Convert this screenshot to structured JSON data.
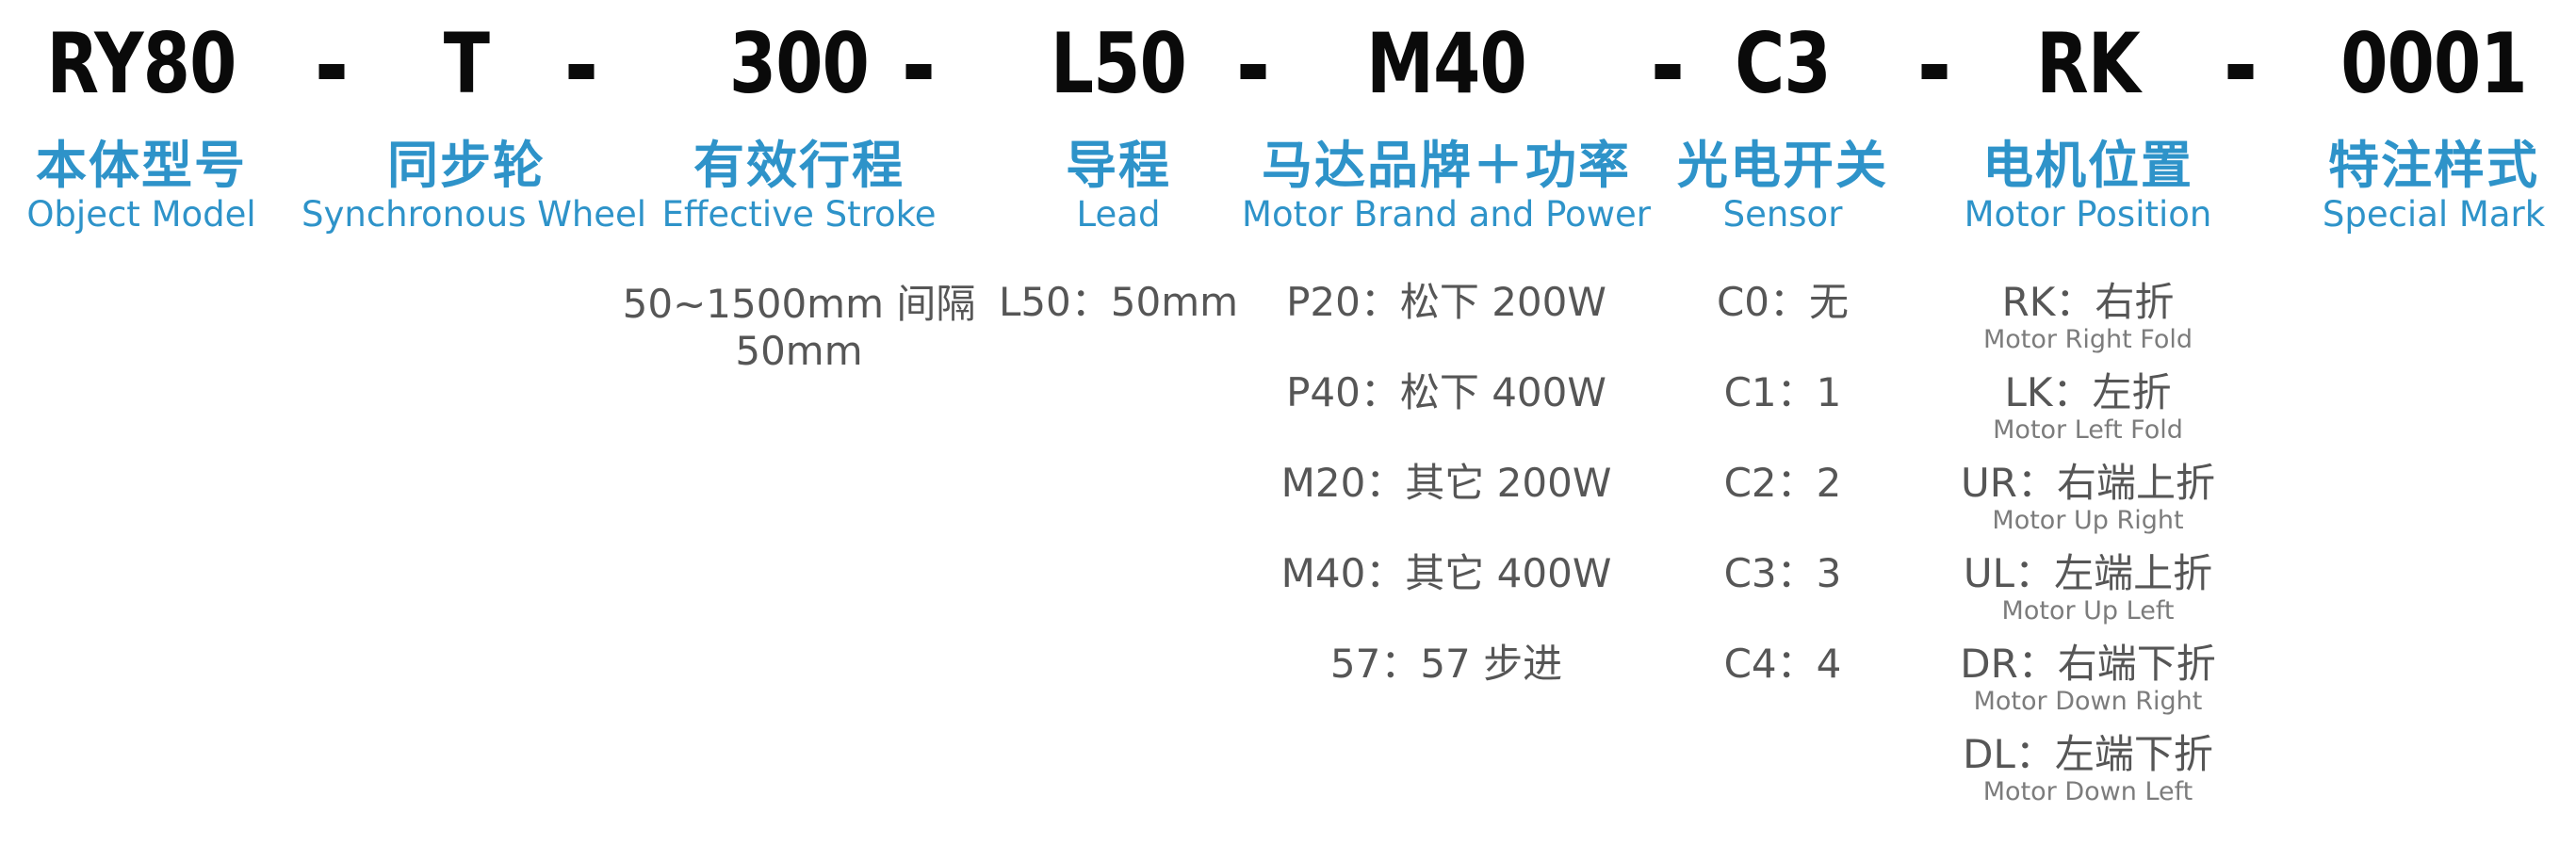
{
  "page": {
    "background": "#ffffff"
  },
  "colors": {
    "accent_blue": "#2e93c9",
    "code_black": "#0a0a0a",
    "option_gray": "#565656",
    "sub_gray": "#7c7c7c"
  },
  "model_code": {
    "full": "RY80-T-300-L50-M40-C3-RK-0001",
    "separator": "-"
  },
  "columns": [
    {
      "code": "RY80",
      "label_zh": "本体型号",
      "label_en": "Object Model",
      "options": []
    },
    {
      "code": "T",
      "label_zh": "同步轮",
      "label_en": "Synchronous Wheel",
      "options": []
    },
    {
      "code": "300",
      "label_zh": "有效行程",
      "label_en": "Effective Stroke",
      "options": [
        {
          "text": "50~1500mm 间隔",
          "text2": "50mm"
        }
      ]
    },
    {
      "code": "L50",
      "label_zh": "导程",
      "label_en": "Lead",
      "options": [
        {
          "text": "L50：50mm"
        }
      ]
    },
    {
      "code": "M40",
      "label_zh": "马达品牌＋功率",
      "label_en": "Motor Brand and Power",
      "options": [
        {
          "text": "P20：松下 200W"
        },
        {
          "text": "P40：松下 400W"
        },
        {
          "text": "M20：其它 200W"
        },
        {
          "text": "M40：其它 400W"
        },
        {
          "text": "57：57 步进"
        }
      ]
    },
    {
      "code": "C3",
      "label_zh": "光电开关",
      "label_en": "Sensor",
      "options": [
        {
          "text": "C0：无"
        },
        {
          "text": "C1：1"
        },
        {
          "text": "C2：2"
        },
        {
          "text": "C3：3"
        },
        {
          "text": "C4：4"
        }
      ]
    },
    {
      "code": "RK",
      "label_zh": "电机位置",
      "label_en": "Motor Position",
      "options": [
        {
          "text": "RK：右折",
          "sub": "Motor Right Fold"
        },
        {
          "text": "LK：左折",
          "sub": "Motor Left Fold"
        },
        {
          "text": "UR：右端上折",
          "sub": "Motor Up Right"
        },
        {
          "text": "UL：左端上折",
          "sub": "Motor Up Left"
        },
        {
          "text": "DR：右端下折",
          "sub": "Motor Down Right"
        },
        {
          "text": "DL：左端下折",
          "sub": "Motor Down Left"
        }
      ]
    },
    {
      "code": "0001",
      "label_zh": "特注样式",
      "label_en": "Special Mark",
      "options": []
    }
  ]
}
